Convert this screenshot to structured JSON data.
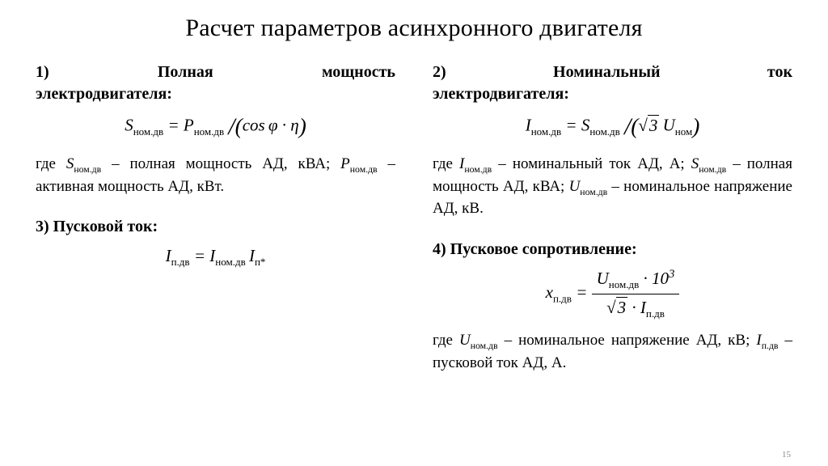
{
  "title": "Расчет параметров асинхронного двигателя",
  "page_number": "15",
  "sections": {
    "s1": {
      "num": "1)",
      "words": [
        "Полная",
        "мощность"
      ],
      "tail": "электродвигателя:",
      "defs_html": "где <span class=\"sym\">S</span><span class=\"sub\">ном.дв</span> – полная мощность АД, кВА; <span class=\"sym\">P</span><span class=\"sub\">ном.дв</span> – активная мощность АД, кВт."
    },
    "s2": {
      "num": "2)",
      "words": [
        "Номинальный",
        "ток"
      ],
      "tail": "электродвигателя:",
      "defs_html": "где <span class=\"sym\">I</span><span class=\"sub\">ном.дв</span> – номинальный ток АД, А; <span class=\"sym\">S</span><span class=\"sub\">ном.дв</span> – полная мощность АД, кВА; <span class=\"sym\">U</span><span class=\"sub\">ном.дв</span> – номинальное напряжение АД, кВ."
    },
    "s3": {
      "heading": "3) Пусковой ток:"
    },
    "s4": {
      "heading": "4) Пусковое сопротивление:",
      "defs_html": "где <span class=\"sym\">U</span><span class=\"sub\">ном.дв</span> – номинальное напряжение АД, кВ; <span class=\"sym\">I</span><span class=\"sub\">п.дв</span> – пусковой ток АД, А."
    }
  }
}
